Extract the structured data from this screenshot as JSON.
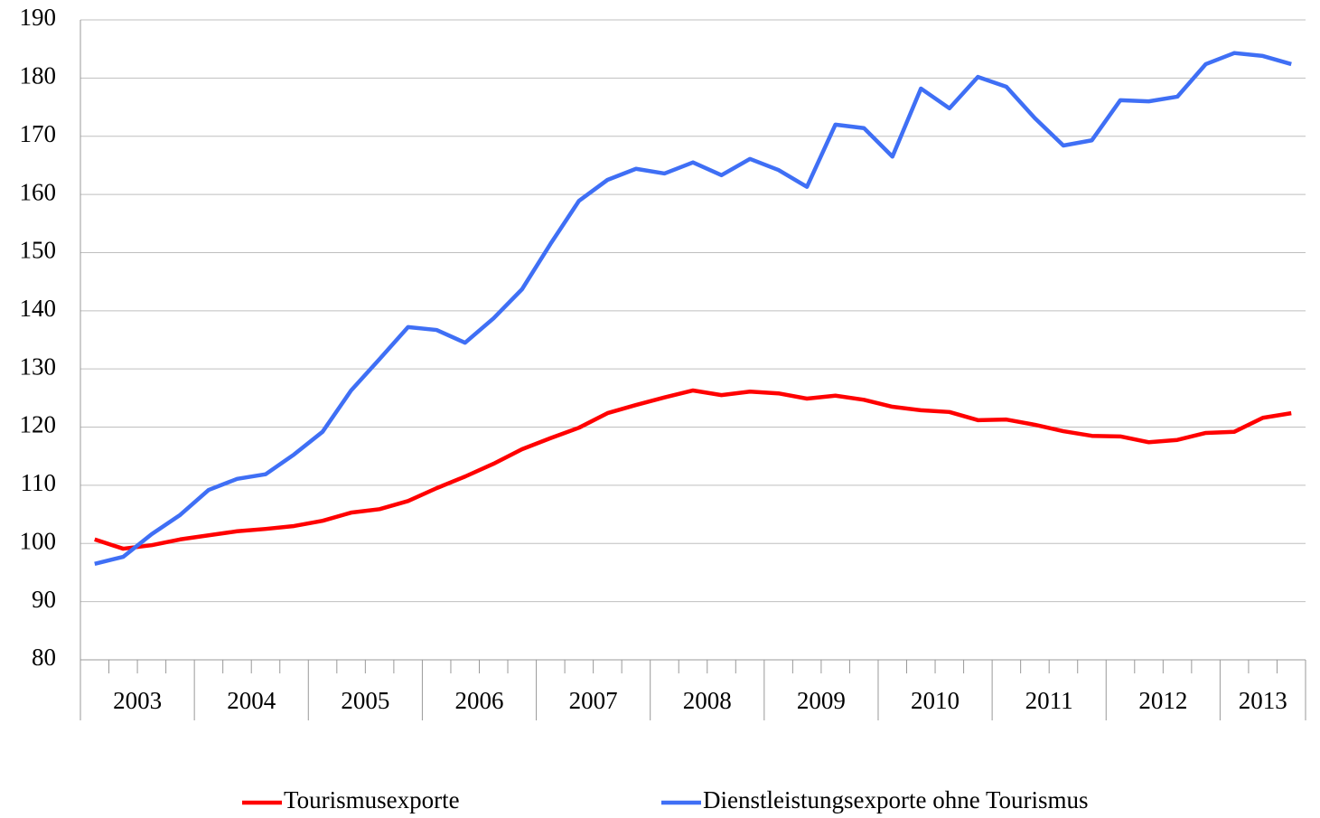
{
  "chart_data": {
    "type": "line",
    "categories": [
      "2003",
      null,
      null,
      null,
      "2004",
      null,
      null,
      null,
      "2005",
      null,
      null,
      null,
      "2006",
      null,
      null,
      null,
      "2007",
      null,
      null,
      null,
      "2008",
      null,
      null,
      null,
      "2009",
      null,
      null,
      null,
      "2010",
      null,
      null,
      null,
      "2011",
      null,
      null,
      null,
      "2012",
      null,
      null,
      null,
      "2013",
      null,
      null
    ],
    "series": [
      {
        "name": "Tourismusexporte",
        "color": "#ff0000",
        "values": [
          100.7,
          99.1,
          99.7,
          100.7,
          101.4,
          102.1,
          102.5,
          103.0,
          103.9,
          105.3,
          105.9,
          107.3,
          109.5,
          111.5,
          113.7,
          116.2,
          118.1,
          119.9,
          122.4,
          123.8,
          125.1,
          126.3,
          125.5,
          126.1,
          125.8,
          124.9,
          125.4,
          124.7,
          123.5,
          122.9,
          122.6,
          121.2,
          121.3,
          120.4,
          119.3,
          118.5,
          118.4,
          117.4,
          117.8,
          119.0,
          119.2,
          121.6,
          122.4
        ]
      },
      {
        "name": "Dienstleistungsexporte ohne Tourismus",
        "color": "#3f6ff5",
        "values": [
          96.5,
          97.7,
          101.6,
          104.9,
          109.2,
          111.1,
          111.9,
          115.3,
          119.2,
          126.3,
          131.7,
          137.2,
          136.7,
          134.5,
          138.7,
          143.7,
          151.5,
          158.9,
          162.5,
          164.4,
          163.6,
          165.5,
          163.3,
          166.1,
          164.2,
          161.3,
          172.0,
          171.4,
          166.5,
          178.2,
          174.8,
          180.2,
          178.5,
          173.1,
          168.4,
          169.3,
          176.2,
          176.0,
          176.8,
          182.4,
          184.3,
          183.8,
          182.4
        ]
      }
    ],
    "ylim": [
      80,
      190
    ],
    "yticks": [
      80,
      90,
      100,
      110,
      120,
      130,
      140,
      150,
      160,
      170,
      180,
      190
    ],
    "grid": true,
    "legend": "bottom"
  }
}
